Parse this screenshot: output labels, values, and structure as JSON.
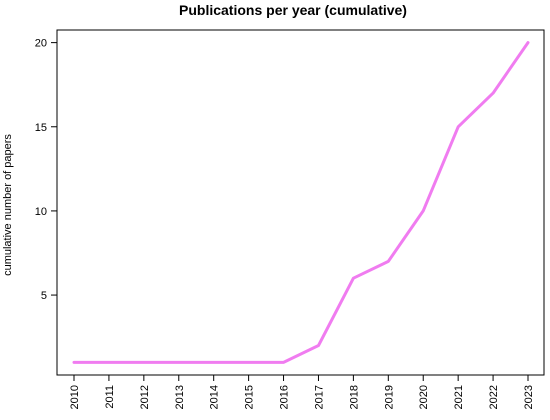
{
  "chart_data": {
    "type": "line",
    "title": "Publications per year (cumulative)",
    "xlabel": "",
    "ylabel": "cumulative number of papers",
    "x": [
      "2010",
      "2011",
      "2012",
      "2013",
      "2014",
      "2015",
      "2016",
      "2017",
      "2018",
      "2019",
      "2020",
      "2021",
      "2022",
      "2023"
    ],
    "series": [
      {
        "values": [
          1,
          1,
          1,
          1,
          1,
          1,
          1,
          2,
          6,
          7,
          10,
          15,
          17,
          20
        ],
        "color": "#f07cf0"
      }
    ],
    "ylim": [
      0.25,
      20.75
    ],
    "yticks": [
      "5",
      "10",
      "15",
      "20"
    ],
    "grid": false,
    "legend": "none"
  }
}
